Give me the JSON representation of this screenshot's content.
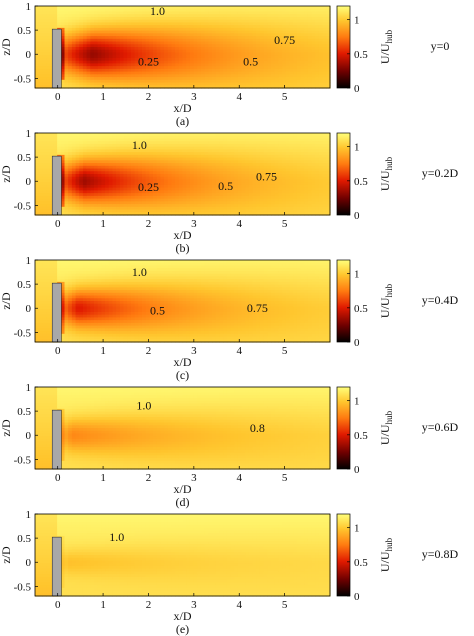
{
  "figure": {
    "colorbar_label": "U/U",
    "colorbar_label_sub": "hub"
  },
  "chart_data": [
    {
      "type": "heatmap",
      "panel": "(a)",
      "condition": "y=0",
      "xlabel": "x/D",
      "ylabel": "z/D",
      "xlim": [
        -0.5,
        6.0
      ],
      "ylim": [
        -0.7,
        1.0
      ],
      "xticks": [
        0,
        1,
        2,
        3,
        4,
        5
      ],
      "yticks": [
        -0.5,
        0,
        0.5,
        1
      ],
      "colorbar": {
        "ticks": [
          0,
          0.5,
          1
        ],
        "range": [
          0,
          1.2
        ]
      },
      "contour_labels": [
        {
          "text": "1.0",
          "x": 2.2,
          "z": 0.9
        },
        {
          "text": "0.75",
          "x": 5.0,
          "z": 0.3
        },
        {
          "text": "0.5",
          "x": 4.25,
          "z": -0.15
        },
        {
          "text": "0.25",
          "x": 2.0,
          "z": -0.15
        }
      ],
      "wake": {
        "deficit": 1.0,
        "length": 4.4,
        "width": 0.62,
        "core": 1.2
      }
    },
    {
      "type": "heatmap",
      "panel": "(b)",
      "condition": "y=0.2D",
      "xlabel": "x/D",
      "ylabel": "z/D",
      "xlim": [
        -0.5,
        6.0
      ],
      "ylim": [
        -0.7,
        1.0
      ],
      "xticks": [
        0,
        1,
        2,
        3,
        4,
        5
      ],
      "yticks": [
        -0.5,
        0,
        0.5,
        1
      ],
      "colorbar": {
        "ticks": [
          0,
          0.5,
          1
        ],
        "range": [
          0,
          1.2
        ]
      },
      "contour_labels": [
        {
          "text": "1.0",
          "x": 1.8,
          "z": 0.75
        },
        {
          "text": "0.75",
          "x": 4.6,
          "z": 0.1
        },
        {
          "text": "0.5",
          "x": 3.7,
          "z": -0.1
        },
        {
          "text": "0.25",
          "x": 2.0,
          "z": -0.12
        }
      ],
      "wake": {
        "deficit": 0.92,
        "length": 4.0,
        "width": 0.6,
        "core": 0.9
      }
    },
    {
      "type": "heatmap",
      "panel": "(c)",
      "condition": "y=0.4D",
      "xlabel": "x/D",
      "ylabel": "z/D",
      "xlim": [
        -0.5,
        6.0
      ],
      "ylim": [
        -0.7,
        1.0
      ],
      "xticks": [
        0,
        1,
        2,
        3,
        4,
        5
      ],
      "yticks": [
        -0.5,
        0,
        0.5,
        1
      ],
      "colorbar": {
        "ticks": [
          0,
          0.5,
          1
        ],
        "range": [
          0,
          1.2
        ]
      },
      "contour_labels": [
        {
          "text": "1.0",
          "x": 1.8,
          "z": 0.75
        },
        {
          "text": "0.5",
          "x": 2.2,
          "z": -0.05
        },
        {
          "text": "0.75",
          "x": 4.4,
          "z": 0.0
        }
      ],
      "wake": {
        "deficit": 0.7,
        "length": 4.2,
        "width": 0.55,
        "core": 0.7
      }
    },
    {
      "type": "heatmap",
      "panel": "(d)",
      "condition": "y=0.6D",
      "xlabel": "x/D",
      "ylabel": "z/D",
      "xlim": [
        -0.5,
        6.0
      ],
      "ylim": [
        -0.7,
        1.0
      ],
      "xticks": [
        0,
        1,
        2,
        3,
        4,
        5
      ],
      "yticks": [
        -0.5,
        0,
        0.5,
        1
      ],
      "colorbar": {
        "ticks": [
          0,
          0.5,
          1
        ],
        "range": [
          0,
          1.2
        ]
      },
      "contour_labels": [
        {
          "text": "1.0",
          "x": 1.9,
          "z": 0.62
        },
        {
          "text": "0.8",
          "x": 4.4,
          "z": 0.15
        }
      ],
      "wake": {
        "deficit": 0.32,
        "length": 5.5,
        "width": 0.5,
        "core": 0.5
      }
    },
    {
      "type": "heatmap",
      "panel": "(e)",
      "condition": "y=0.8D",
      "xlabel": "x/D",
      "ylabel": "z/D",
      "xlim": [
        -0.5,
        6.0
      ],
      "ylim": [
        -0.7,
        1.0
      ],
      "xticks": [
        0,
        1,
        2,
        3,
        4,
        5
      ],
      "yticks": [
        -0.5,
        0,
        0.5,
        1
      ],
      "colorbar": {
        "ticks": [
          0,
          0.5,
          1
        ],
        "range": [
          0,
          1.2
        ]
      },
      "contour_labels": [
        {
          "text": "1.0",
          "x": 1.3,
          "z": 0.52
        }
      ],
      "wake": {
        "deficit": 0.12,
        "length": 6.0,
        "width": 0.4,
        "core": 0.4
      }
    }
  ]
}
